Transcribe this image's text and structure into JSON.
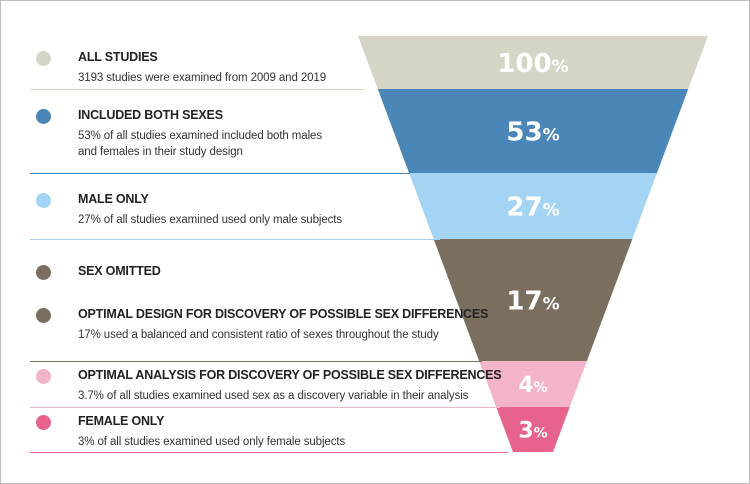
{
  "colors": {
    "all": "#d6d4c5",
    "both": "#4a87b8",
    "male": "#a4d4f3",
    "omitted": "#7a6f5e",
    "analysis": "#f3b3c9",
    "female": "#e8638c"
  },
  "items": [
    {
      "title": "ALL STUDIES",
      "desc": "3193 studies were examined from 2009 and 2019"
    },
    {
      "title": "INCLUDED BOTH SEXES",
      "desc": "53% of all studies examined included both males and females in their study design"
    },
    {
      "title": "MALE ONLY",
      "desc": "27% of all studies examined  used only male subjects"
    },
    {
      "title": "SEX OMITTED",
      "desc": ""
    },
    {
      "title": "OPTIMAL DESIGN FOR DISCOVERY OF POSSIBLE SEX DIFFERENCES",
      "desc": "17% used a balanced and consistent ratio of sexes throughout the study"
    },
    {
      "title": "OPTIMAL ANALYSIS FOR DISCOVERY OF POSSIBLE SEX DIFFERENCES",
      "desc": "3.7% of all studies examined used sex as a discovery variable in their analysis"
    },
    {
      "title": "FEMALE ONLY",
      "desc": "3% of all studies examined used only female subjects"
    }
  ],
  "funnel": [
    {
      "value": "100",
      "unit": "%"
    },
    {
      "value": "53",
      "unit": "%"
    },
    {
      "value": "27",
      "unit": "%"
    },
    {
      "value": "17",
      "unit": "%"
    },
    {
      "value": "4",
      "unit": "%"
    },
    {
      "value": "3",
      "unit": "%"
    }
  ]
}
